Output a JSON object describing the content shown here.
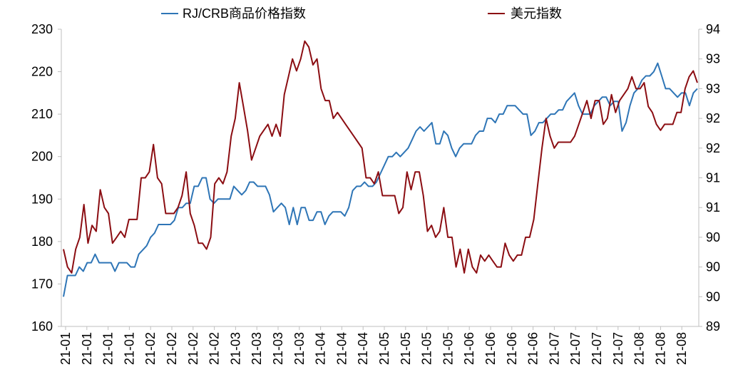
{
  "chart_data": {
    "type": "line",
    "title": "",
    "left_axis": {
      "ylim": [
        160,
        230
      ],
      "ticks": [
        160,
        170,
        180,
        190,
        200,
        210,
        220,
        230
      ],
      "label": ""
    },
    "right_axis": {
      "ylim": [
        89,
        94
      ],
      "tick_labels": [
        "89",
        "90",
        "90",
        "90",
        "91",
        "91",
        "92",
        "92",
        "93",
        "93",
        "94"
      ],
      "label": ""
    },
    "x_tick_labels": [
      "21-01",
      "21-01",
      "21-01",
      "21-01",
      "21-02",
      "21-02",
      "21-02",
      "21-02",
      "21-03",
      "21-03",
      "21-03",
      "21-03",
      "21-04",
      "21-04",
      "21-04",
      "21-05",
      "21-05",
      "21-05",
      "21-05",
      "21-06",
      "21-06",
      "21-06",
      "21-06",
      "21-07",
      "21-07",
      "21-07",
      "21-07",
      "21-08",
      "21-08",
      "21-08"
    ],
    "grid": false,
    "legend_position": "top",
    "series": [
      {
        "name": "RJ/CRB商品价格指数",
        "axis": "left",
        "color": "#2e75b6",
        "values": [
          167,
          172,
          172,
          172,
          174,
          173,
          175,
          175,
          177,
          175,
          175,
          175,
          175,
          173,
          175,
          175,
          175,
          174,
          174,
          177,
          178,
          179,
          181,
          182,
          184,
          184,
          184,
          184,
          185,
          188,
          188,
          189,
          189,
          193,
          193,
          195,
          195,
          190,
          189,
          190,
          190,
          190,
          190,
          193,
          192,
          191,
          192,
          194,
          194,
          193,
          193,
          193,
          191,
          187,
          188,
          189,
          188,
          184,
          188,
          184,
          188,
          188,
          185,
          185,
          187,
          187,
          184,
          186,
          187,
          187,
          187,
          186,
          188,
          192,
          193,
          193,
          194,
          193,
          193,
          194,
          196,
          198,
          200,
          200,
          201,
          200,
          201,
          202,
          204,
          206,
          207,
          206,
          207,
          208,
          203,
          203,
          206,
          205,
          202,
          200,
          202,
          203,
          203,
          203,
          205,
          206,
          206,
          209,
          209,
          208,
          210,
          210,
          212,
          212,
          212,
          211,
          210,
          210,
          205,
          206,
          208,
          208,
          209,
          210,
          210,
          211,
          211,
          213,
          214,
          215,
          212,
          210,
          210,
          210,
          212,
          213,
          214,
          214,
          212,
          213,
          213,
          206,
          208,
          212,
          215,
          216,
          218,
          219,
          219,
          220,
          222,
          219,
          216,
          216,
          215,
          214,
          215,
          215,
          212,
          215,
          216
        ]
      },
      {
        "name": "美元指数",
        "axis": "right",
        "color": "#8b0d12",
        "values": [
          90.3,
          90.0,
          89.9,
          90.3,
          90.5,
          91.05,
          90.4,
          90.7,
          90.6,
          91.3,
          91.0,
          90.9,
          90.4,
          90.5,
          90.6,
          90.5,
          90.8,
          90.8,
          90.8,
          91.5,
          91.5,
          91.6,
          92.06,
          91.5,
          91.4,
          90.9,
          90.9,
          90.9,
          91.0,
          91.2,
          91.6,
          90.9,
          90.7,
          90.4,
          90.4,
          90.3,
          90.5,
          91.4,
          91.5,
          91.4,
          91.6,
          92.2,
          92.5,
          93.1,
          92.7,
          92.3,
          91.8,
          92.0,
          92.2,
          92.3,
          92.4,
          92.2,
          92.4,
          92.2,
          92.9,
          93.2,
          93.5,
          93.3,
          93.5,
          93.8,
          93.7,
          93.4,
          93.5,
          93.0,
          92.8,
          92.8,
          92.5,
          92.6,
          92.5,
          92.4,
          92.3,
          92.2,
          92.1,
          92.0,
          91.5,
          91.5,
          91.4,
          91.6,
          91.2,
          91.2,
          91.2,
          91.2,
          90.9,
          91.0,
          91.6,
          91.3,
          91.6,
          91.6,
          91.2,
          90.6,
          90.7,
          90.5,
          90.6,
          91.0,
          90.5,
          90.5,
          90.0,
          90.3,
          89.9,
          90.3,
          90.0,
          89.9,
          90.2,
          90.1,
          90.2,
          90.1,
          90.0,
          90.0,
          90.4,
          90.2,
          90.1,
          90.2,
          90.2,
          90.5,
          90.5,
          90.8,
          91.4,
          92.0,
          92.5,
          92.2,
          92.0,
          92.1,
          92.1,
          92.1,
          92.1,
          92.2,
          92.4,
          92.6,
          92.8,
          92.5,
          92.8,
          92.8,
          92.4,
          92.5,
          92.9,
          92.6,
          92.8,
          92.9,
          93.0,
          93.2,
          93.0,
          93.0,
          93.1,
          92.7,
          92.6,
          92.4,
          92.3,
          92.4,
          92.4,
          92.4,
          92.6,
          92.6,
          93.0,
          93.2,
          93.3,
          93.1
        ]
      }
    ]
  }
}
